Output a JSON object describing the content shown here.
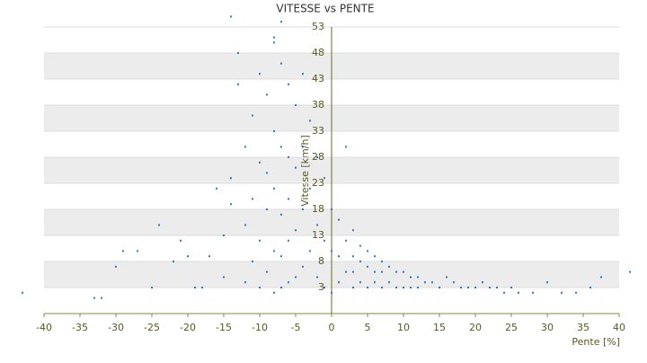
{
  "chart_data": {
    "type": "scatter",
    "title": "VITESSE vs PENTE",
    "x_label": "Pente [%]",
    "y_label": "Vitesse [km/h]",
    "xlim": [
      -40,
      40
    ],
    "xticks": [
      -40,
      -35,
      -30,
      -25,
      -20,
      -15,
      -10,
      -5,
      0,
      5,
      10,
      15,
      20,
      25,
      30,
      35,
      40
    ],
    "ylim": [
      -2,
      53
    ],
    "yticks": [
      3,
      8,
      13,
      18,
      23,
      28,
      33,
      38,
      43,
      48,
      53
    ],
    "grid": true,
    "color": "#2a7ad1",
    "series": [
      {
        "name": "Vitesse",
        "color": "#2a7ad1",
        "x": [
          -43,
          -33,
          -32,
          -30,
          -29,
          -27,
          -25,
          -24,
          -22,
          -21,
          -20,
          -19,
          -18,
          -17,
          -16,
          -15,
          -15,
          -14,
          -14,
          -13,
          -13,
          -12,
          -12,
          -12,
          -11,
          -11,
          -11,
          -10,
          -10,
          -10,
          -10,
          -9,
          -9,
          -9,
          -9,
          -8,
          -8,
          -8,
          -8,
          -8,
          -7,
          -7,
          -7,
          -7,
          -7,
          -6,
          -6,
          -6,
          -6,
          -6,
          -5,
          -5,
          -5,
          -5,
          -4,
          -4,
          -4,
          -4,
          -3,
          -3,
          -3,
          -2,
          -2,
          -2,
          -1,
          -1,
          -1,
          0,
          0,
          0,
          1,
          1,
          1,
          2,
          2,
          2,
          3,
          3,
          3,
          3,
          4,
          4,
          4,
          5,
          5,
          5,
          6,
          6,
          6,
          7,
          7,
          7,
          8,
          8,
          9,
          9,
          10,
          10,
          11,
          11,
          12,
          12,
          13,
          14,
          15,
          16,
          17,
          18,
          19,
          20,
          21,
          22,
          23,
          24,
          25,
          26,
          28,
          30,
          32,
          34,
          36,
          37.5,
          41.5,
          -14,
          -7,
          -8
        ],
        "y": [
          2,
          1,
          1,
          7,
          10,
          10,
          3,
          15,
          8,
          12,
          9,
          3,
          3,
          9,
          22,
          13,
          5,
          24,
          19,
          42,
          48,
          30,
          15,
          4,
          36,
          20,
          8,
          44,
          27,
          12,
          3,
          40,
          25,
          18,
          6,
          50,
          33,
          22,
          10,
          2,
          46,
          30,
          17,
          9,
          3,
          42,
          28,
          20,
          12,
          4,
          38,
          26,
          14,
          5,
          44,
          30,
          18,
          7,
          35,
          22,
          10,
          28,
          15,
          5,
          24,
          12,
          3,
          18,
          10,
          2,
          16,
          9,
          4,
          30,
          12,
          6,
          14,
          9,
          6,
          3,
          11,
          8,
          4,
          10,
          7,
          3,
          9,
          6,
          4,
          8,
          6,
          3,
          7,
          4,
          6,
          3,
          6,
          3,
          5,
          3,
          5,
          3,
          4,
          4,
          3,
          5,
          4,
          3,
          3,
          3,
          4,
          3,
          3,
          2,
          3,
          2,
          2,
          4,
          2,
          2,
          3,
          5,
          6,
          55,
          54,
          51
        ]
      }
    ]
  }
}
